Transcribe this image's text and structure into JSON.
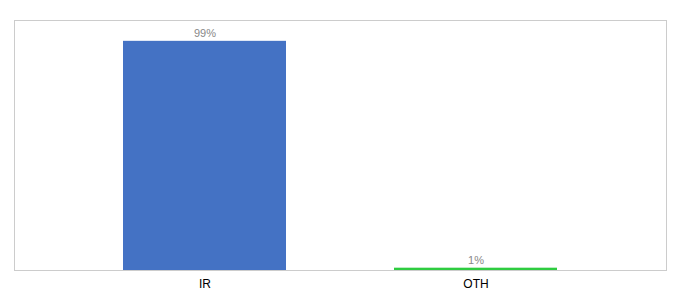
{
  "chart_data": {
    "type": "bar",
    "categories": [
      "IR",
      "OTH"
    ],
    "values": [
      99,
      1
    ],
    "value_labels": [
      "99%",
      "1%"
    ],
    "colors": [
      "#4472c4",
      "#2ecc40"
    ],
    "ylim": [
      0,
      108
    ],
    "data_labels": true,
    "tick_labels": "x"
  }
}
